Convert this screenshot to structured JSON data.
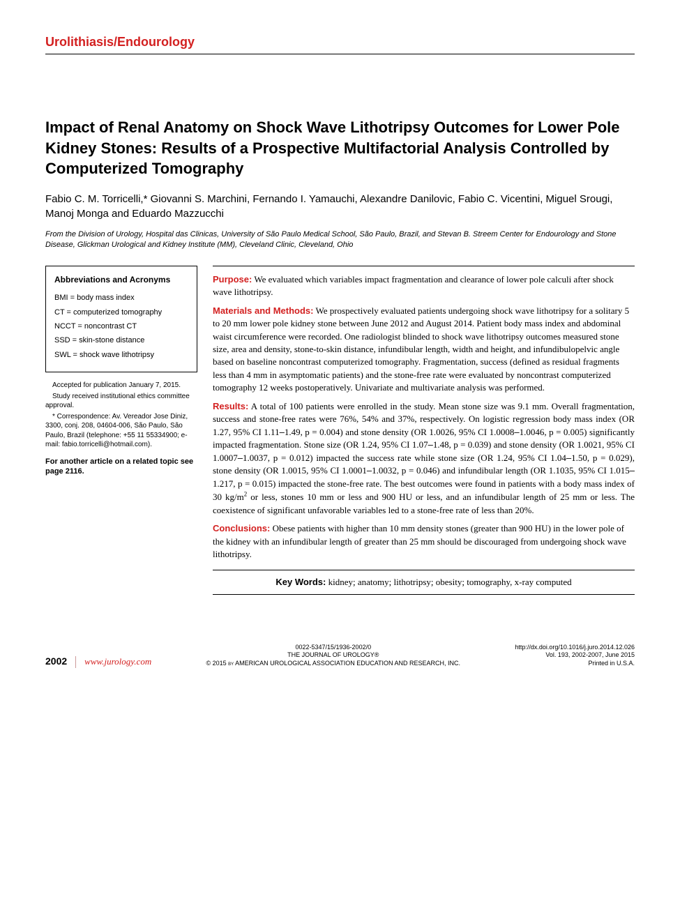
{
  "section_header": "Urolithiasis/Endourology",
  "title": "Impact of Renal Anatomy on Shock Wave Lithotripsy Outcomes for Lower Pole Kidney Stones: Results of a Prospective Multifactorial Analysis Controlled by Computerized Tomography",
  "authors": "Fabio C. M. Torricelli,* Giovanni S. Marchini, Fernando I. Yamauchi, Alexandre Danilovic, Fabio C. Vicentini, Miguel Srougi, Manoj Monga and Eduardo Mazzucchi",
  "affiliation": "From the Division of Urology, Hospital das Clinicas, University of São Paulo Medical School, São Paulo, Brazil, and Stevan B. Streem Center for Endourology and Stone Disease, Glickman Urological and Kidney Institute (MM), Cleveland Clinic, Cleveland, Ohio",
  "abbrev": {
    "title": "Abbreviations and Acronyms",
    "items": [
      "BMI = body mass index",
      "CT = computerized tomography",
      "NCCT = noncontrast CT",
      "SSD = skin-stone distance",
      "SWL = shock wave lithotripsy"
    ]
  },
  "side_notes": {
    "accepted": "Accepted for publication January 7, 2015.",
    "ethics": "Study received institutional ethics committee approval.",
    "correspondence": "* Correspondence: Av. Vereador Jose Diniz, 3300, conj. 208, 04604-006, São Paulo, São Paulo, Brazil (telephone: +55 11 55334900; e-mail: fabio.torricelli@hotmail.com)."
  },
  "related": "For another article on a related topic see page 2116.",
  "abstract": {
    "purpose_label": "Purpose:",
    "purpose": " We evaluated which variables impact fragmentation and clearance of lower pole calculi after shock wave lithotripsy.",
    "methods_label": "Materials and Methods:",
    "methods": " We prospectively evaluated patients undergoing shock wave lithotripsy for a solitary 5 to 20 mm lower pole kidney stone between June 2012 and August 2014. Patient body mass index and abdominal waist circumference were recorded. One radiologist blinded to shock wave lithotripsy outcomes measured stone size, area and density, stone-to-skin distance, infundibular length, width and height, and infundibulopelvic angle based on baseline noncontrast computerized tomography. Fragmentation, success (defined as residual fragments less than 4 mm in asymptomatic patients) and the stone-free rate were evaluated by noncontrast computerized tomography 12 weeks postoperatively. Univariate and multivariate analysis was performed.",
    "results_label": "Results:",
    "results_html": " A total of 100 patients were enrolled in the study. Mean stone size was 9.1 mm. Overall fragmentation, success and stone-free rates were 76%, 54% and 37%, respectively. On logistic regression body mass index (OR 1.27, 95% CI 1.11<span class='minus'>–</span>1.49, p = 0.004) and stone density (OR 1.0026, 95% CI 1.0008<span class='minus'>–</span>1.0046, p = 0.005) significantly impacted fragmentation. Stone size (OR 1.24, 95% CI 1.07<span class='minus'>–</span>1.48, p = 0.039) and stone density (OR 1.0021, 95% CI 1.0007<span class='minus'>–</span>1.0037, p = 0.012) impacted the success rate while stone size (OR 1.24, 95% CI 1.04<span class='minus'>–</span>1.50, p = 0.029), stone density (OR 1.0015, 95% CI 1.0001<span class='minus'>–</span>1.0032, p = 0.046) and infundibular length (OR 1.1035, 95% CI 1.015<span class='minus'>–</span>1.217, p = 0.015) impacted the stone-free rate. The best outcomes were found in patients with a body mass index of 30 kg/m<sup>2</sup> or less, stones 10 mm or less and 900 HU or less, and an infundibular length of 25 mm or less. The coexistence of significant unfavorable variables led to a stone-free rate of less than 20%.",
    "conclusions_label": "Conclusions:",
    "conclusions": " Obese patients with higher than 10 mm density stones (greater than 900 HU) in the lower pole of the kidney with an infundibular length of greater than 25 mm should be discouraged from undergoing shock wave lithotripsy."
  },
  "keywords": {
    "label": "Key Words:",
    "text": " kidney; anatomy; lithotripsy; obesity; tomography, x-ray computed"
  },
  "footer": {
    "page_num": "2002",
    "url": "www.jurology.com",
    "issn": "0022-5347/15/1936-2002/0",
    "journal": "THE JOURNAL OF UROLOGY®",
    "copyright": "© 2015 by AMERICAN UROLOGICAL ASSOCIATION EDUCATION AND RESEARCH, INC.",
    "doi": "http://dx.doi.org/10.1016/j.juro.2014.12.026",
    "vol": "Vol. 193, 2002-2007, June 2015",
    "printed": "Printed in U.S.A."
  },
  "colors": {
    "accent": "#d32020",
    "text": "#000000",
    "bg": "#ffffff"
  },
  "typography": {
    "section_header_pt": 18,
    "title_pt": 22,
    "authors_pt": 15,
    "affiliation_pt": 11,
    "abstract_pt": 13,
    "sidebar_pt": 11,
    "footer_pt": 9
  }
}
